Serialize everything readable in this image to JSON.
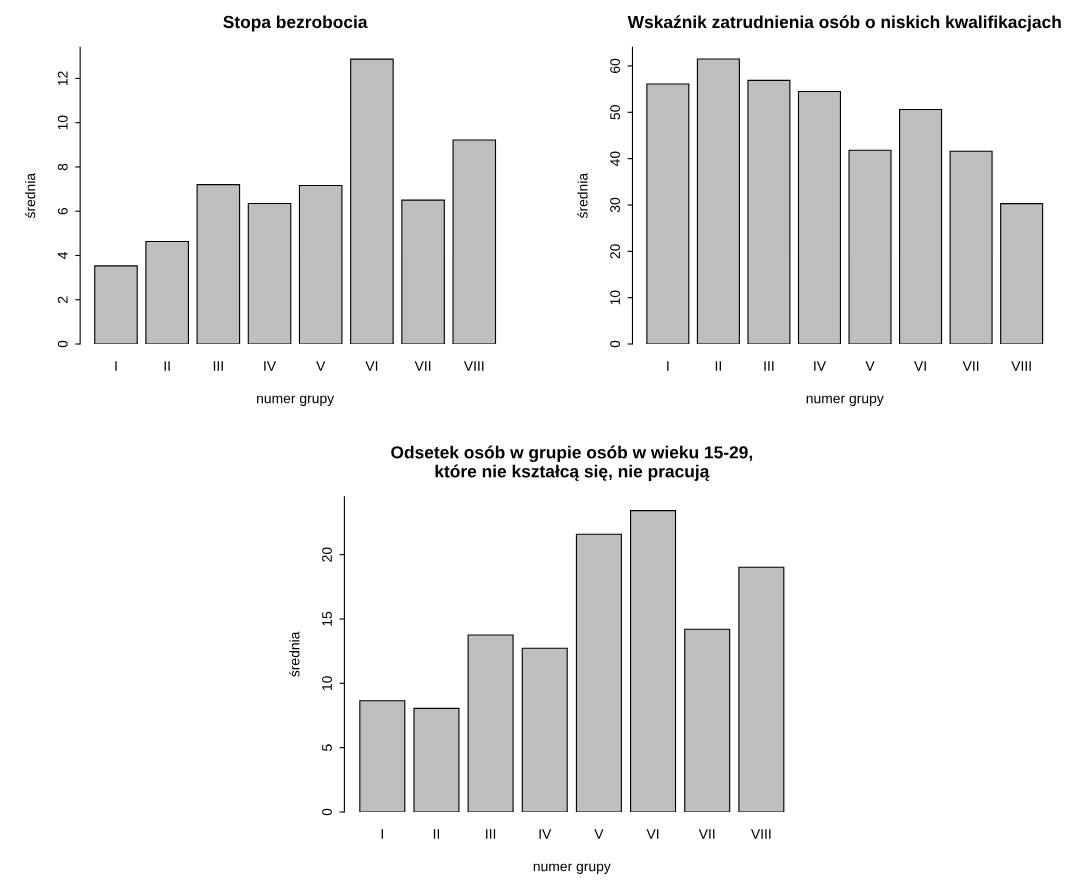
{
  "chart_data": [
    {
      "type": "bar",
      "title": "Stopa bezrobocia",
      "xlabel": "numer grupy",
      "ylabel": "średnia",
      "categories": [
        "I",
        "II",
        "III",
        "IV",
        "V",
        "VI",
        "VII",
        "VIII"
      ],
      "color": "#bebebe",
      "values": [
        3.53,
        4.63,
        7.2,
        6.35,
        7.16,
        12.87,
        6.5,
        9.22
      ],
      "ylim": [
        0,
        13.4
      ],
      "yticks": [
        0,
        2,
        4,
        6,
        8,
        10,
        12
      ]
    },
    {
      "type": "bar",
      "title": "Wskaźnik zatrudnienia osób o niskich kwalifikacjach",
      "xlabel": "numer grupy",
      "ylabel": "średnia",
      "categories": [
        "I",
        "II",
        "III",
        "IV",
        "V",
        "VI",
        "VII",
        "VIII"
      ],
      "color": "#bebebe",
      "values": [
        56.1,
        61.5,
        56.9,
        54.5,
        41.8,
        50.6,
        41.6,
        30.3
      ],
      "ylim": [
        0,
        64
      ],
      "yticks": [
        0,
        10,
        20,
        30,
        40,
        50,
        60
      ]
    },
    {
      "type": "bar",
      "title": "Odsetek osób w grupie osób w wieku 15-29,\nktóre nie kształcą się, nie pracują",
      "xlabel": "numer grupy",
      "ylabel": "średnia",
      "categories": [
        "I",
        "II",
        "III",
        "IV",
        "V",
        "VI",
        "VII",
        "VIII"
      ],
      "color": "#bebebe",
      "values": [
        8.64,
        8.05,
        13.76,
        12.73,
        21.58,
        23.42,
        14.2,
        19.02
      ],
      "ylim": [
        0,
        24.5
      ],
      "yticks": [
        0,
        5,
        10,
        15,
        20
      ]
    }
  ]
}
